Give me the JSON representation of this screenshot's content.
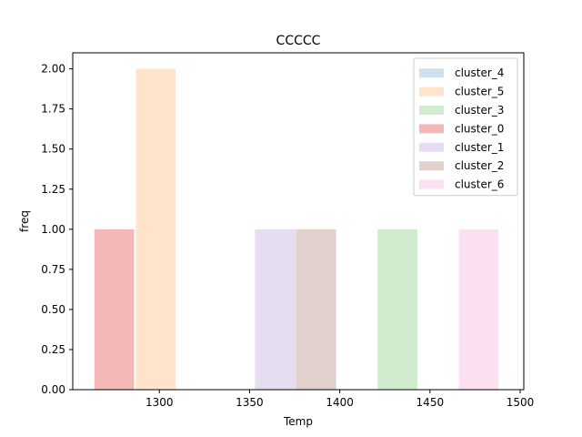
{
  "chart_data": {
    "type": "bar",
    "title": "CCCCC",
    "xlabel": "Temp",
    "ylabel": "freq",
    "xlim": [
      1252,
      1502
    ],
    "ylim": [
      0,
      2.1
    ],
    "xticks": [
      1300,
      1350,
      1400,
      1450,
      1500
    ],
    "yticks": [
      "0.00",
      "0.25",
      "0.50",
      "0.75",
      "1.00",
      "1.25",
      "1.50",
      "1.75",
      "2.00"
    ],
    "legend_position": "top-right",
    "series": [
      {
        "name": "cluster_4",
        "color": "#a6c8df",
        "bars": []
      },
      {
        "name": "cluster_5",
        "color": "#ffcc9e",
        "bars": [
          {
            "x0": 1287,
            "x1": 1309,
            "value": 2
          }
        ]
      },
      {
        "name": "cluster_3",
        "color": "#acdaa8",
        "bars": [
          {
            "x0": 1421,
            "x1": 1443,
            "value": 1
          }
        ]
      },
      {
        "name": "cluster_0",
        "color": "#e97f80",
        "bars": [
          {
            "x0": 1264,
            "x1": 1286,
            "value": 1
          }
        ]
      },
      {
        "name": "cluster_1",
        "color": "#d1c1e3",
        "bars": [
          {
            "x0": 1353,
            "x1": 1376,
            "value": 1
          }
        ]
      },
      {
        "name": "cluster_2",
        "color": "#c9a9a2",
        "bars": [
          {
            "x0": 1376,
            "x1": 1398,
            "value": 1
          }
        ]
      },
      {
        "name": "cluster_6",
        "color": "#f6c6e6",
        "bars": [
          {
            "x0": 1466,
            "x1": 1488,
            "value": 1
          }
        ]
      }
    ]
  }
}
